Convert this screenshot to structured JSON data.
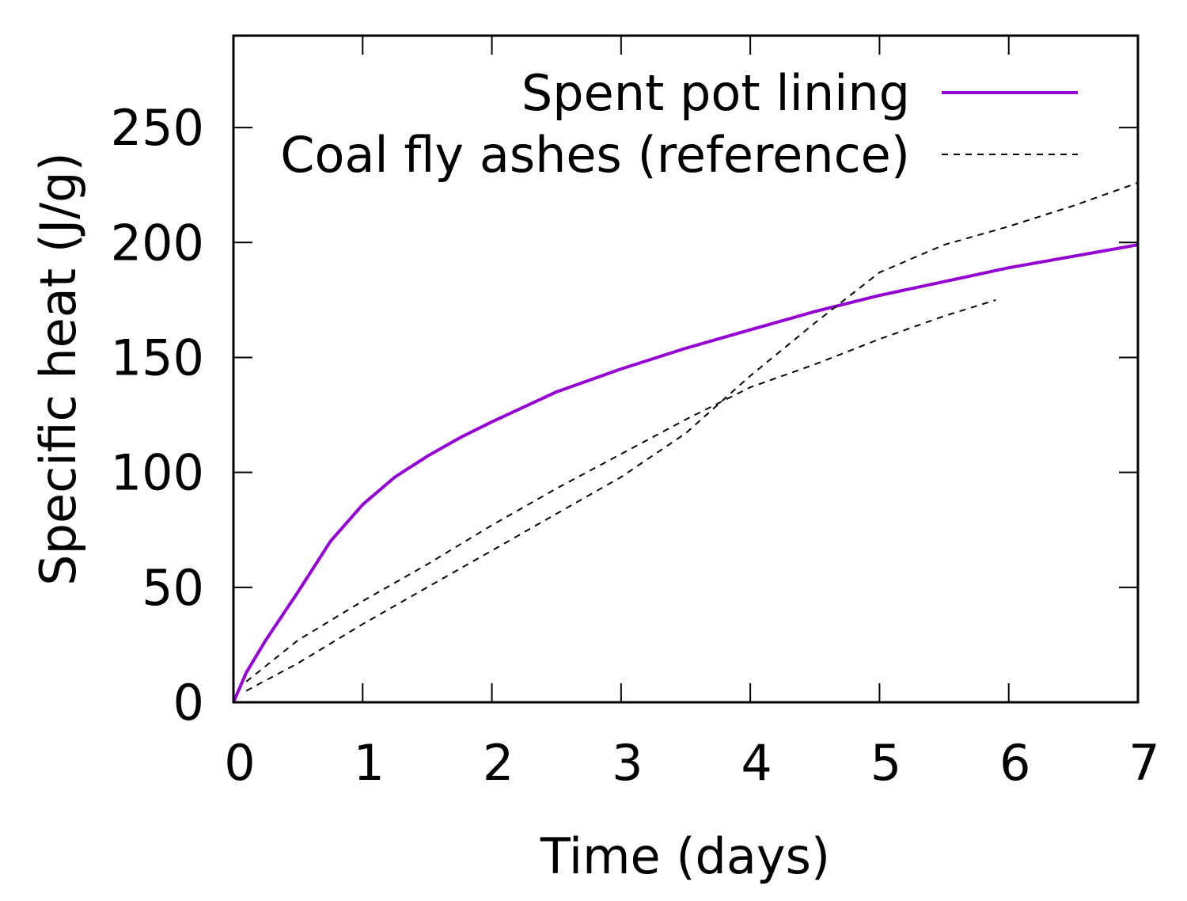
{
  "chart_data": {
    "type": "line",
    "title": "",
    "xlabel": "Time (days)",
    "ylabel": "Specific heat (J/g)",
    "xlim": [
      0,
      7
    ],
    "ylim": [
      0,
      290
    ],
    "xticks": [
      0,
      1,
      2,
      3,
      4,
      5,
      6,
      7
    ],
    "xtick_labels": [
      "0",
      "1",
      "2",
      "3",
      "4",
      "5",
      "6",
      "7"
    ],
    "yticks": [
      0,
      50,
      100,
      150,
      200,
      250
    ],
    "ytick_labels": [
      "0",
      "50",
      "100",
      "150",
      "200",
      "250"
    ],
    "grid": false,
    "legend_position": "top-right",
    "series": [
      {
        "name": "Spent pot lining",
        "color": "#9400d3",
        "style": "solid",
        "x": [
          0,
          0.1,
          0.25,
          0.5,
          0.75,
          1.0,
          1.25,
          1.5,
          1.75,
          2.0,
          2.5,
          3.0,
          3.5,
          4.0,
          4.5,
          5.0,
          5.5,
          6.0,
          6.5,
          7.0
        ],
        "y": [
          0,
          13,
          27,
          48,
          70,
          86,
          98,
          107,
          115,
          122,
          135,
          145,
          154,
          162,
          170,
          177,
          183,
          189,
          194,
          199
        ]
      },
      {
        "name": "Coal fly ashes (reference)",
        "color": "#000000",
        "style": "dashed",
        "segments": [
          {
            "x": [
              0.1,
              0.5,
              1.0,
              1.5,
              2.0,
              2.5,
              3.0,
              3.5,
              4.0,
              4.5,
              5.0,
              5.5,
              6.0,
              6.5,
              7.0
            ],
            "y": [
              5,
              17,
              34,
              50,
              66,
              82,
              98,
              117,
              142,
              165,
              187,
              199,
              207,
              216,
              226
            ]
          },
          {
            "x": [
              0.1,
              0.5,
              1.0,
              1.5,
              2.0,
              2.5,
              3.0,
              3.5,
              4.0,
              4.5,
              5.0,
              5.5,
              5.9
            ],
            "y": [
              9,
              27,
              44,
              60,
              77,
              93,
              108,
              123,
              137,
              147,
              158,
              168,
              175
            ]
          }
        ]
      }
    ]
  }
}
